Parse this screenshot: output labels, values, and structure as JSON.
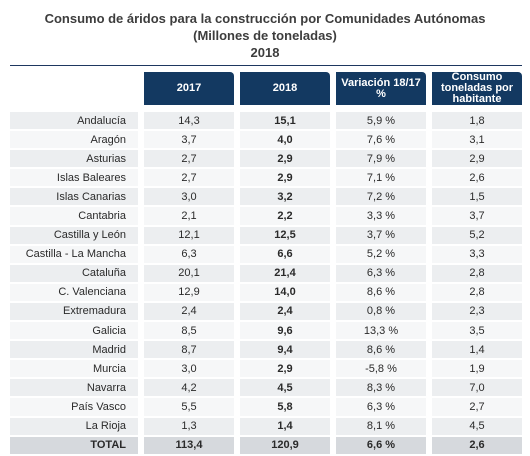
{
  "title": {
    "line1": "Consumo de áridos para la construcción por Comunidades Autónomas",
    "line2": "(Millones de toneladas)",
    "line3": "2018"
  },
  "headers": {
    "col_2017": "2017",
    "col_2018": "2018",
    "col_variacion": "Variación 18/17 %",
    "col_consumo": "Consumo toneladas por habitante"
  },
  "rows": [
    {
      "name": "Andalucía",
      "y2017": "14,3",
      "y2018": "15,1",
      "variacion": "5,9 %",
      "consumo": "1,8"
    },
    {
      "name": "Aragón",
      "y2017": "3,7",
      "y2018": "4,0",
      "variacion": "7,6 %",
      "consumo": "3,1"
    },
    {
      "name": "Asturias",
      "y2017": "2,7",
      "y2018": "2,9",
      "variacion": "7,9 %",
      "consumo": "2,9"
    },
    {
      "name": "Islas Baleares",
      "y2017": "2,7",
      "y2018": "2,9",
      "variacion": "7,1 %",
      "consumo": "2,6"
    },
    {
      "name": "Islas Canarias",
      "y2017": "3,0",
      "y2018": "3,2",
      "variacion": "7,2 %",
      "consumo": "1,5"
    },
    {
      "name": "Cantabria",
      "y2017": "2,1",
      "y2018": "2,2",
      "variacion": "3,3 %",
      "consumo": "3,7"
    },
    {
      "name": "Castilla y León",
      "y2017": "12,1",
      "y2018": "12,5",
      "variacion": "3,7 %",
      "consumo": "5,2"
    },
    {
      "name": "Castilla - La Mancha",
      "y2017": "6,3",
      "y2018": "6,6",
      "variacion": "5,2 %",
      "consumo": "3,3"
    },
    {
      "name": "Cataluña",
      "y2017": "20,1",
      "y2018": "21,4",
      "variacion": "6,3 %",
      "consumo": "2,8"
    },
    {
      "name": "C. Valenciana",
      "y2017": "12,9",
      "y2018": "14,0",
      "variacion": "8,6 %",
      "consumo": "2,8"
    },
    {
      "name": "Extremadura",
      "y2017": "2,4",
      "y2018": "2,4",
      "variacion": "0,8 %",
      "consumo": "2,3"
    },
    {
      "name": "Galicia",
      "y2017": "8,5",
      "y2018": "9,6",
      "variacion": "13,3 %",
      "consumo": "3,5"
    },
    {
      "name": "Madrid",
      "y2017": "8,7",
      "y2018": "9,4",
      "variacion": "8,6 %",
      "consumo": "1,4"
    },
    {
      "name": "Murcia",
      "y2017": "3,0",
      "y2018": "2,9",
      "variacion": "-5,8 %",
      "consumo": "1,9"
    },
    {
      "name": "Navarra",
      "y2017": "4,2",
      "y2018": "4,5",
      "variacion": "8,3 %",
      "consumo": "7,0"
    },
    {
      "name": "País Vasco",
      "y2017": "5,5",
      "y2018": "5,8",
      "variacion": "6,3 %",
      "consumo": "2,7"
    },
    {
      "name": "La Rioja",
      "y2017": "1,3",
      "y2018": "1,4",
      "variacion": "8,1 %",
      "consumo": "4,5"
    }
  ],
  "total": {
    "name": "TOTAL",
    "y2017": "113,4",
    "y2018": "120,9",
    "variacion": "6,6 %",
    "consumo": "2,6"
  },
  "colors": {
    "header_bg": "#133961",
    "row_dark": "#eceef0",
    "row_light": "#f6f7f8",
    "total_bg": "#d6d9dd"
  }
}
